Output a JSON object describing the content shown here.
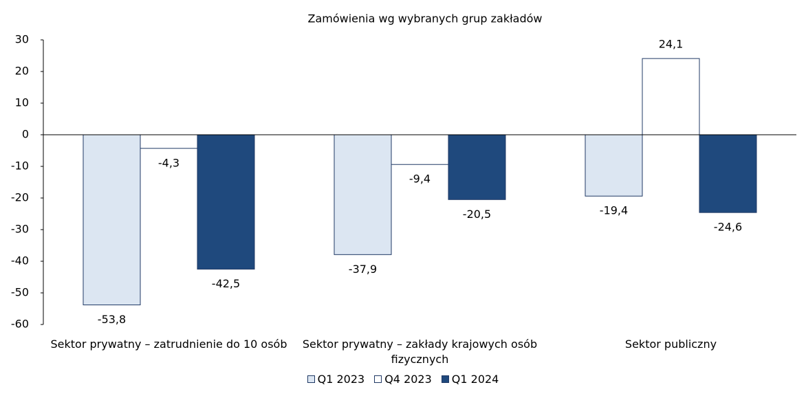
{
  "chart_data": {
    "type": "bar",
    "title": "Zamówienia wg wybranych grup zakładów",
    "categories": [
      "Sektor prywatny – zatrudnienie do 10 osób",
      "Sektor prywatny – zakłady krajowych osób fizycznych",
      "Sektor publiczny"
    ],
    "series": [
      {
        "name": "Q1 2023",
        "color": "#dce6f2",
        "values": [
          -53.8,
          -37.9,
          -19.4
        ],
        "value_labels": [
          "-53,8",
          "-37,9",
          "-19,4"
        ]
      },
      {
        "name": "Q4 2023",
        "color": "#ffffff",
        "values": [
          -4.3,
          -9.4,
          24.1
        ],
        "value_labels": [
          "-4,3",
          "-9,4",
          "24,1"
        ]
      },
      {
        "name": "Q1 2024",
        "color": "#1f497d",
        "values": [
          -42.5,
          -20.5,
          -24.6
        ],
        "value_labels": [
          "-42,5",
          "-20,5",
          "-24,6"
        ]
      }
    ],
    "ylim": [
      -60,
      30
    ],
    "yticks": [
      -60,
      -50,
      -40,
      -30,
      -20,
      -10,
      0,
      10,
      20,
      30
    ],
    "legend": "bottom"
  }
}
